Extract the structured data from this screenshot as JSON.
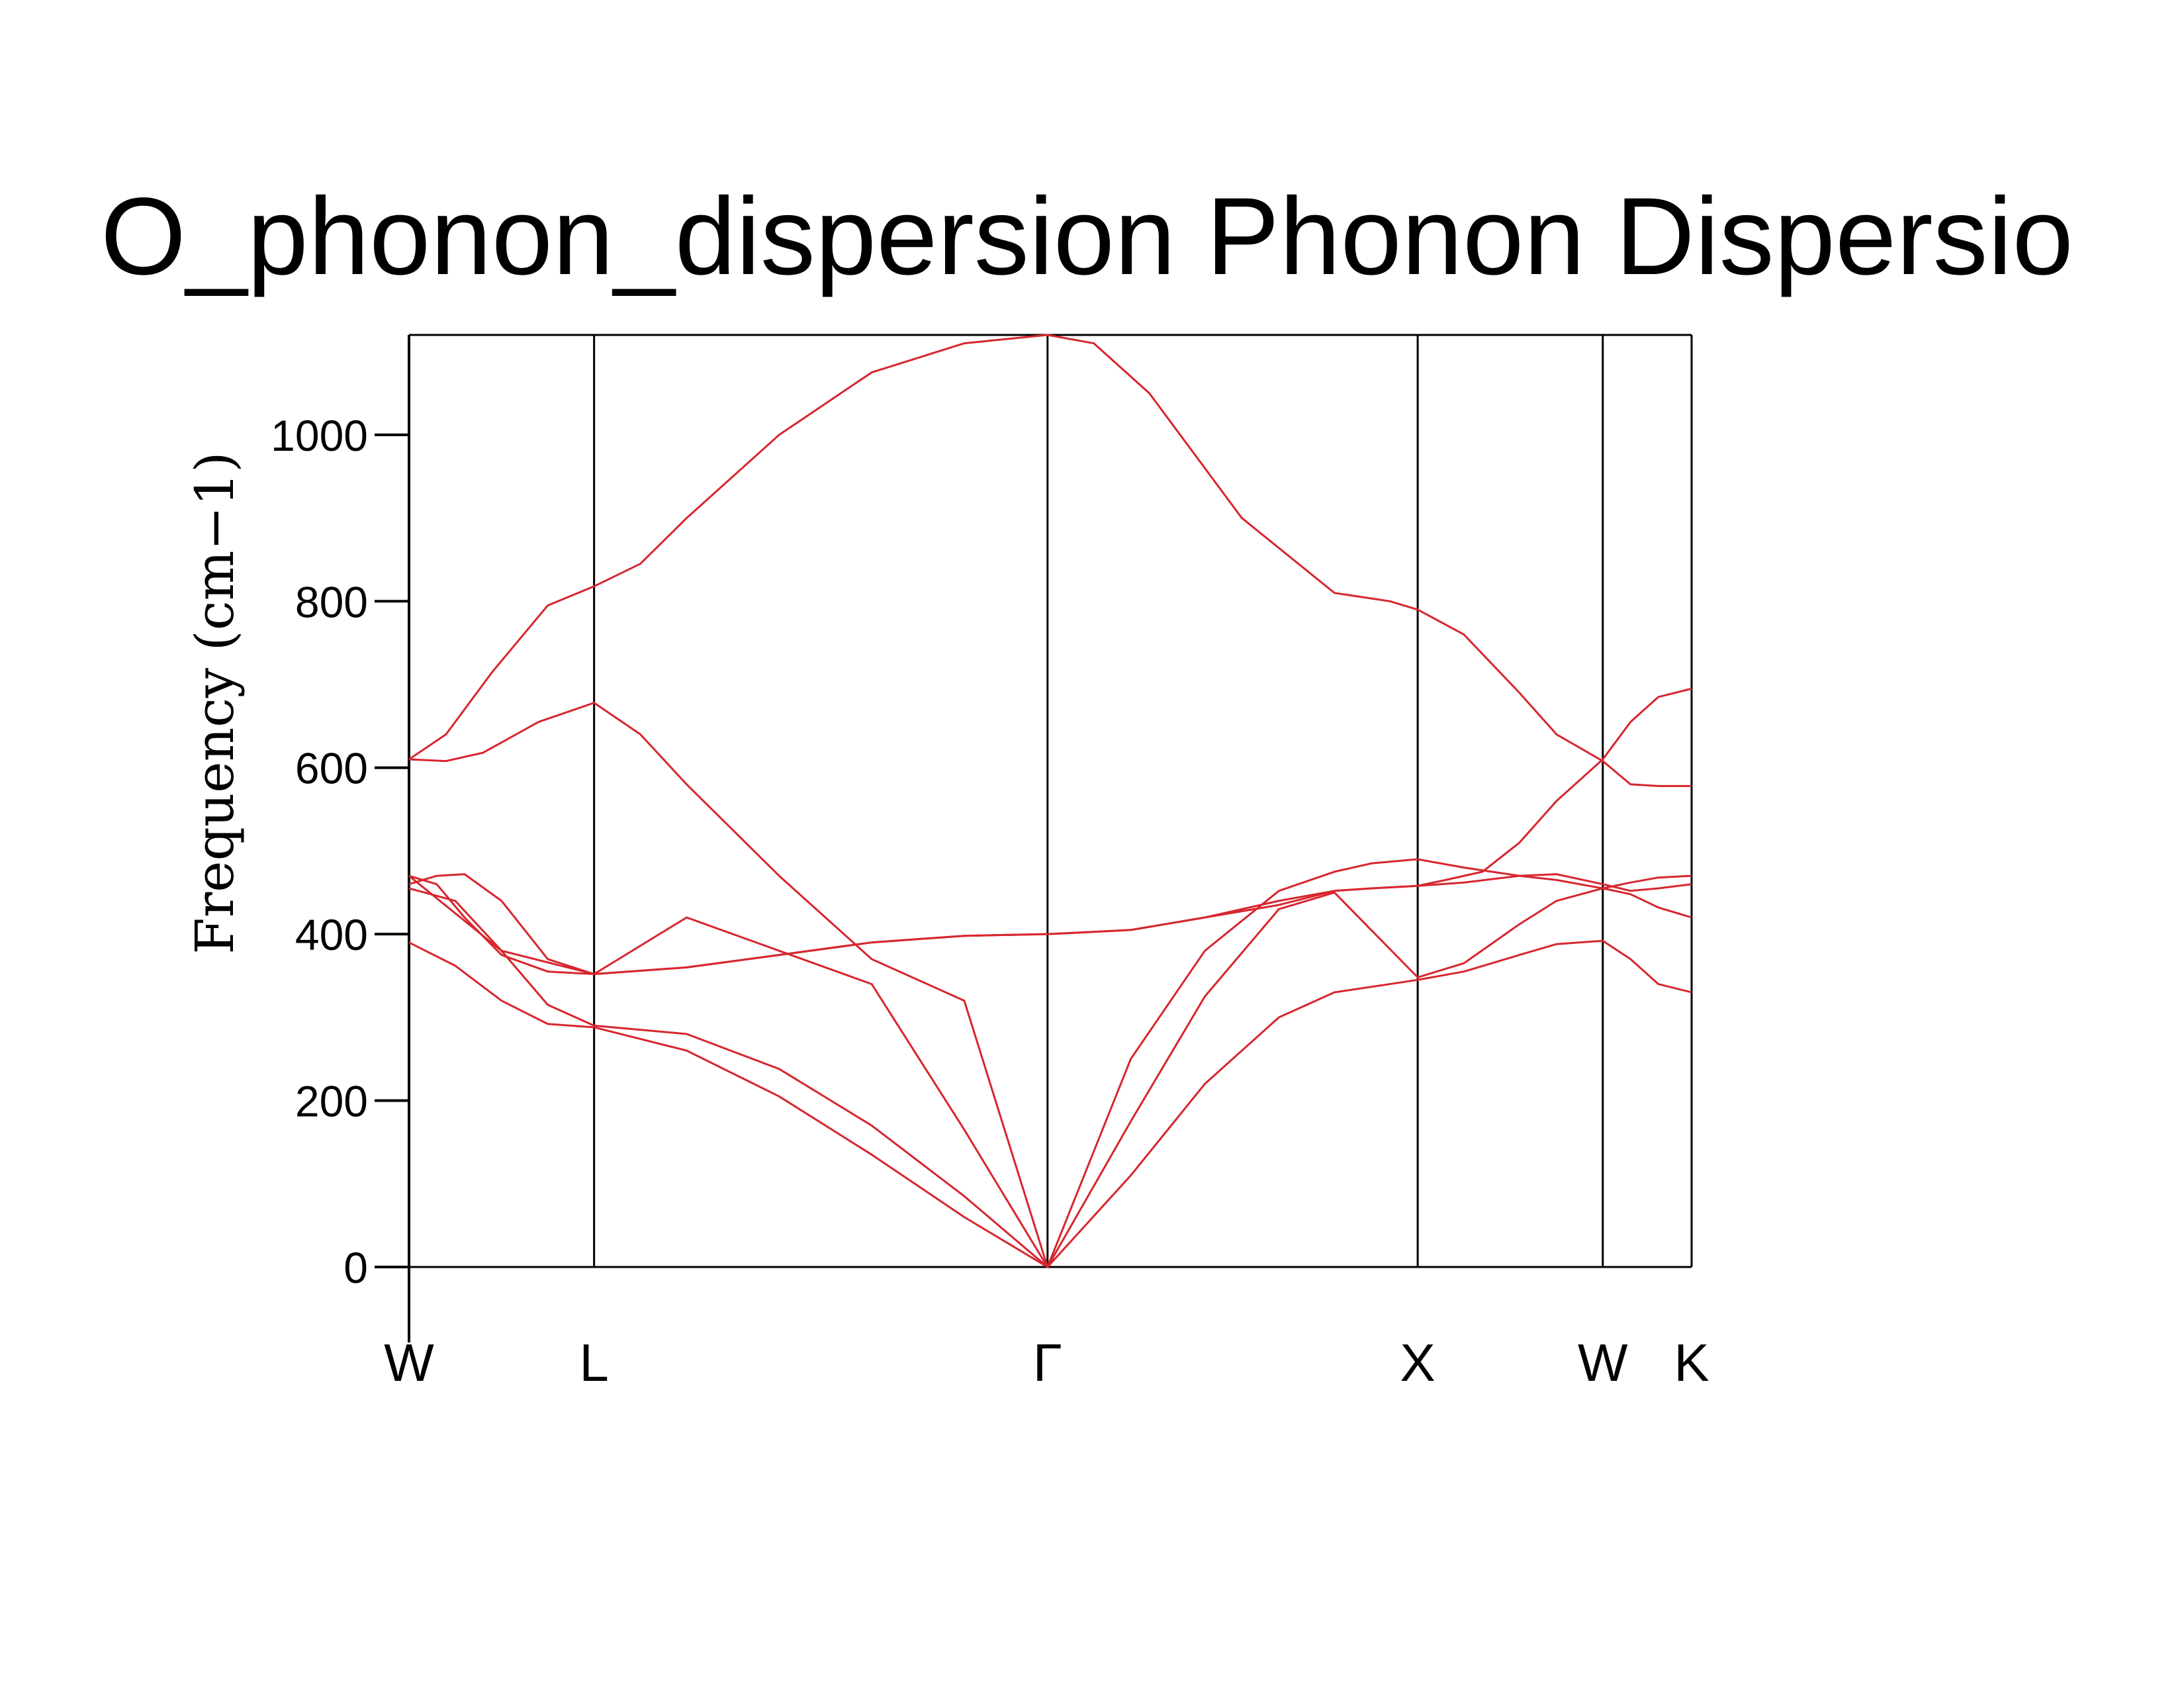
{
  "chart_data": {
    "type": "line",
    "title": "O_phonon_dispersion Phonon Dispersio",
    "xlabel": "",
    "ylabel": "Frequency  (cm−1)",
    "ylim": [
      -120,
      1120
    ],
    "yticks": [
      0,
      200,
      400,
      600,
      800,
      1000
    ],
    "ytick_labels": [
      "0",
      "200",
      "400",
      "600",
      "800",
      "1000"
    ],
    "xlim": [
      0,
      6.93
    ],
    "high_symmetry_points": [
      {
        "label": "W",
        "x": 0
      },
      {
        "label": "L",
        "x": 1.0
      },
      {
        "label": "Γ",
        "x": 3.45
      },
      {
        "label": "X",
        "x": 5.45
      },
      {
        "label": "W",
        "x": 6.45
      },
      {
        "label": "K",
        "x": 6.93
      }
    ],
    "grid": false,
    "line_color": "#d7262e",
    "series": [
      {
        "x": [
          0,
          0.25,
          0.5,
          0.75,
          1.0,
          1.5,
          2.0,
          2.5,
          3.0,
          3.45,
          3.9,
          4.3,
          4.7,
          5.0,
          5.45,
          5.7,
          6.0,
          6.2,
          6.45,
          6.6,
          6.75,
          6.93
        ],
        "values": [
          390,
          362,
          320,
          292,
          288,
          260,
          205,
          135,
          60,
          0,
          110,
          220,
          300,
          330,
          345,
          355,
          375,
          388,
          392,
          370,
          340,
          330
        ]
      },
      {
        "x": [
          0,
          0.25,
          0.5,
          0.75,
          1.0,
          1.5,
          2.0,
          2.5,
          3.0,
          3.45,
          3.9,
          4.3,
          4.7,
          5.0,
          5.45,
          5.7,
          6.0,
          6.2,
          6.45,
          6.6,
          6.75,
          6.93
        ],
        "values": [
          455,
          440,
          380,
          315,
          290,
          280,
          238,
          170,
          85,
          0,
          175,
          325,
          430,
          450,
          348,
          365,
          412,
          440,
          455,
          448,
          432,
          420
        ]
      },
      {
        "x": [
          0,
          0.15,
          0.3,
          0.5,
          0.75,
          1.0,
          1.5,
          2.0,
          2.5,
          3.0,
          3.45,
          3.9,
          4.3,
          4.7,
          5.0,
          5.2,
          5.45,
          5.7,
          6.0,
          6.2,
          6.45,
          6.6,
          6.75,
          6.93
        ],
        "values": [
          470,
          460,
          420,
          375,
          355,
          352,
          360,
          375,
          390,
          398,
          400,
          405,
          420,
          435,
          452,
          455,
          458,
          462,
          470,
          472,
          460,
          452,
          455,
          460
        ]
      },
      {
        "x": [
          0,
          0.15,
          0.3,
          0.5,
          0.75,
          1.0,
          1.5,
          2.0,
          2.5,
          3.0,
          3.45,
          3.9,
          4.3,
          4.7,
          5.0,
          5.2,
          5.45,
          5.7,
          6.0,
          6.2,
          6.45,
          6.6,
          6.75,
          6.93
        ],
        "values": [
          460,
          470,
          472,
          440,
          370,
          352,
          420,
          380,
          340,
          165,
          0,
          250,
          380,
          452,
          475,
          485,
          490,
          480,
          470,
          465,
          455,
          462,
          468,
          470
        ]
      },
      {
        "x": [
          0,
          0.2,
          0.4,
          0.7,
          1.0,
          1.25,
          1.5,
          2.0,
          2.5,
          3.0,
          3.45,
          3.9,
          4.3,
          4.7,
          5.0,
          5.45,
          5.7,
          6.0,
          6.2,
          6.45,
          6.6,
          6.75,
          6.93
        ],
        "values": [
          610,
          608,
          618,
          655,
          678,
          640,
          580,
          470,
          370,
          320,
          0,
          0,
          0,
          0,
          0,
          0,
          0,
          0,
          0,
          0,
          0,
          0,
          0
        ]
      },
      {
        "x": [
          0,
          0.2,
          0.45,
          0.75,
          1.0,
          1.25,
          1.5,
          2.0,
          2.5,
          3.0,
          3.45,
          3.7,
          4.0,
          4.5,
          5.0,
          5.3,
          5.45,
          5.7,
          6.0,
          6.2,
          6.45,
          6.6,
          6.75,
          6.93
        ],
        "values": [
          610,
          640,
          715,
          795,
          818,
          845,
          900,
          1000,
          1075,
          1110,
          1120,
          1110,
          1050,
          900,
          810,
          800,
          790,
          760,
          690,
          640,
          608,
          580,
          578,
          578
        ]
      },
      {
        "x": [
          0,
          0.5,
          1.0,
          1.5,
          2.0,
          2.5,
          3.0,
          3.45,
          3.9,
          4.3,
          4.7,
          5.0,
          5.2,
          5.45,
          5.6,
          5.8,
          6.0,
          6.2,
          6.45,
          6.6,
          6.75,
          6.93
        ],
        "values": [
          470,
          380,
          352,
          360,
          375,
          390,
          398,
          400,
          405,
          420,
          440,
          452,
          455,
          458,
          465,
          475,
          510,
          560,
          610,
          655,
          685,
          695
        ]
      }
    ]
  }
}
